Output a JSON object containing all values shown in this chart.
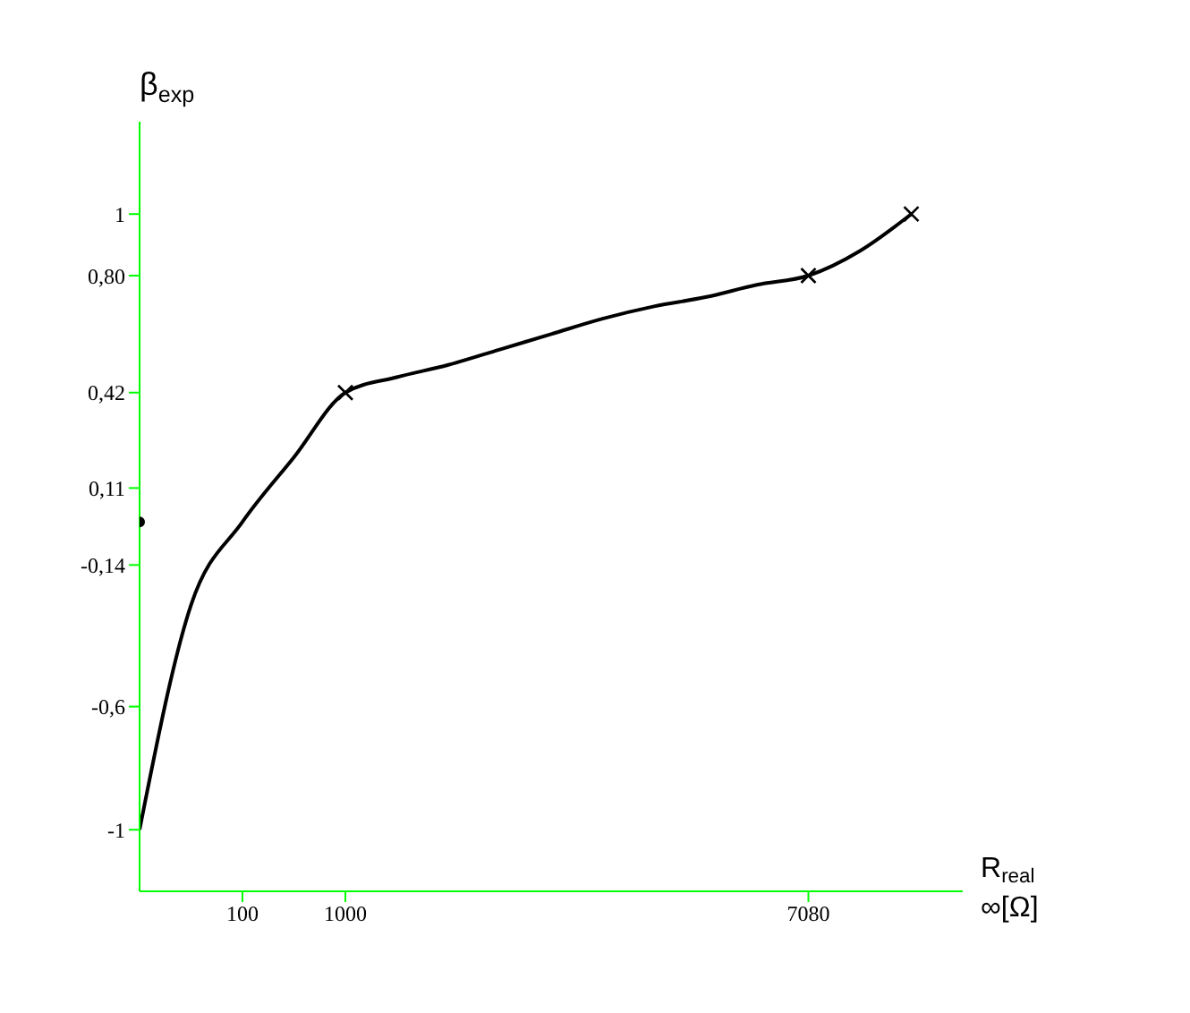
{
  "chart_data": {
    "type": "line",
    "xlabel": "R$_{real}$",
    "ylabel": "β$_{exp}$",
    "annotations": [
      "∞[Ω]"
    ],
    "categories": [
      null,
      null,
      "100",
      null,
      "1000",
      null,
      null,
      null,
      null,
      null,
      null,
      null,
      null,
      "7080",
      null,
      null
    ],
    "series": [
      {
        "color": "#000000",
        "marker": "none",
        "values": [
          -1,
          -0.27,
          0,
          0.21,
          0.42,
          0.47,
          0.51,
          0.56,
          0.61,
          0.66,
          0.7,
          0.73,
          0.77,
          0.8,
          0.88,
          1
        ]
      },
      {
        "type": "scatter",
        "marker": "cross",
        "color": "#000000",
        "values": [
          null,
          null,
          null,
          null,
          0.42,
          null,
          null,
          null,
          null,
          null,
          null,
          null,
          null,
          0.8,
          null,
          1
        ]
      },
      {
        "type": "scatter",
        "marker": "circle",
        "color": "#000000",
        "values": [
          0,
          null,
          null,
          null,
          null,
          null,
          null,
          null,
          null,
          null,
          null,
          null,
          null,
          null,
          null,
          null
        ]
      }
    ],
    "ylim": [
      -1.2,
      1.3
    ],
    "yticks": [
      -1,
      {
        "value": -0.6,
        "label": "-0,6"
      },
      {
        "value": -0.14,
        "label": "-0,14"
      },
      {
        "value": 0.11,
        "label": "0,11"
      },
      {
        "value": 0.42,
        "label": "0,42"
      },
      {
        "value": 0.8,
        "label": "0,80"
      },
      1
    ],
    "legend": false
  }
}
